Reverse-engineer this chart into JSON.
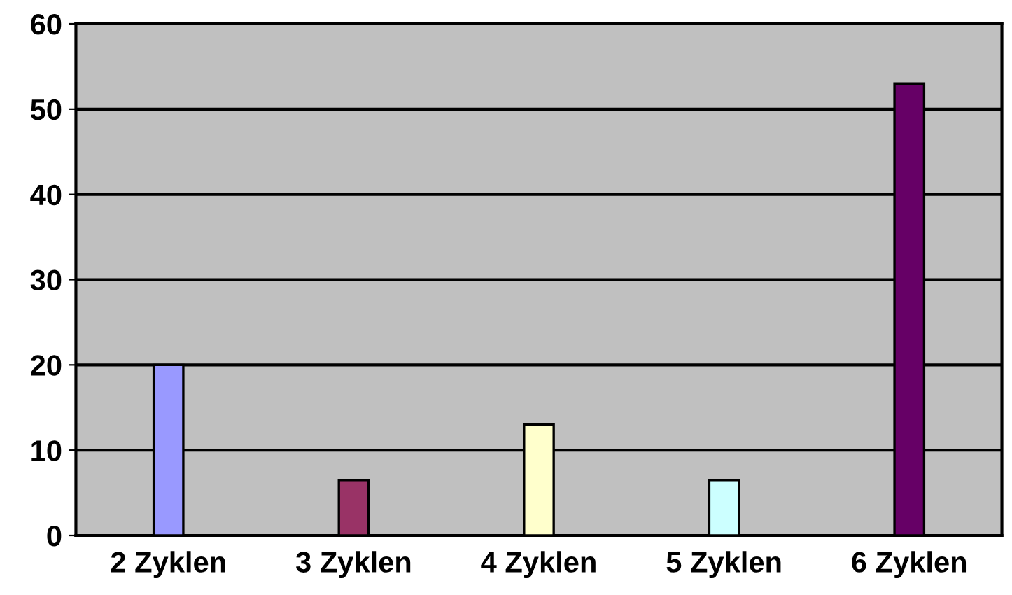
{
  "chart_data": {
    "type": "bar",
    "categories": [
      "2 Zyklen",
      "3 Zyklen",
      "4 Zyklen",
      "5 Zyklen",
      "6 Zyklen"
    ],
    "values": [
      20,
      6.5,
      13,
      6.5,
      53
    ],
    "colors": [
      "#9999ff",
      "#993366",
      "#ffffcc",
      "#ccffff",
      "#660066"
    ],
    "ylim": [
      0,
      60
    ],
    "yticks": [
      0,
      10,
      20,
      30,
      40,
      50,
      60
    ],
    "grid": "y"
  }
}
